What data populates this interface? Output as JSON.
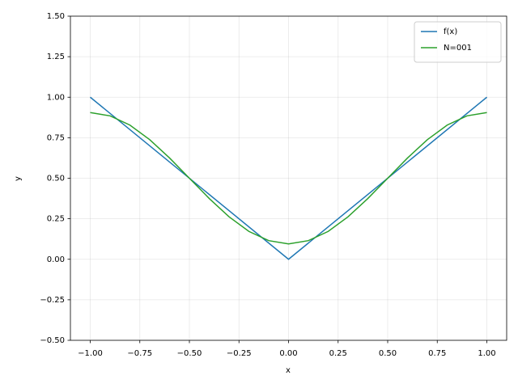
{
  "chart_data": {
    "type": "line",
    "x_label": "x",
    "y_label": "y",
    "xlim": [
      -1.1,
      1.1
    ],
    "ylim": [
      -0.5,
      1.5
    ],
    "xticks": [
      {
        "value": -1,
        "label": "−1.00"
      },
      {
        "value": -0.75,
        "label": "−0.75"
      },
      {
        "value": -0.5,
        "label": "−0.50"
      },
      {
        "value": -0.25,
        "label": "−0.25"
      },
      {
        "value": 0,
        "label": "0.00"
      },
      {
        "value": 0.25,
        "label": "0.25"
      },
      {
        "value": 0.5,
        "label": "0.50"
      },
      {
        "value": 0.75,
        "label": "0.75"
      },
      {
        "value": 1,
        "label": "1.00"
      }
    ],
    "yticks": [
      {
        "value": -0.5,
        "label": "−0.50"
      },
      {
        "value": -0.25,
        "label": "−0.25"
      },
      {
        "value": 0,
        "label": "0.00"
      },
      {
        "value": 0.25,
        "label": "0.25"
      },
      {
        "value": 0.5,
        "label": "0.50"
      },
      {
        "value": 0.75,
        "label": "0.75"
      },
      {
        "value": 1,
        "label": "1.00"
      },
      {
        "value": 1.25,
        "label": "1.25"
      },
      {
        "value": 1.5,
        "label": "1.50"
      }
    ],
    "grid": true,
    "legend": "upper right",
    "series": [
      {
        "name": "f(x)",
        "color": "#1f77b4",
        "x": [
          -1,
          0,
          1
        ],
        "values": [
          1,
          0,
          1
        ]
      },
      {
        "name": "N=001",
        "color": "#2ca02c",
        "x": [
          -1,
          -0.9,
          -0.8,
          -0.7,
          -0.6,
          -0.5,
          -0.4,
          -0.3,
          -0.2,
          -0.1,
          0,
          0.1,
          0.2,
          0.3,
          0.4,
          0.5,
          0.6,
          0.7,
          0.8,
          0.9,
          1
        ],
        "values": [
          0.905,
          0.885,
          0.828,
          0.738,
          0.625,
          0.5,
          0.375,
          0.262,
          0.172,
          0.115,
          0.095,
          0.115,
          0.172,
          0.262,
          0.375,
          0.5,
          0.625,
          0.738,
          0.828,
          0.885,
          0.905
        ]
      }
    ]
  }
}
